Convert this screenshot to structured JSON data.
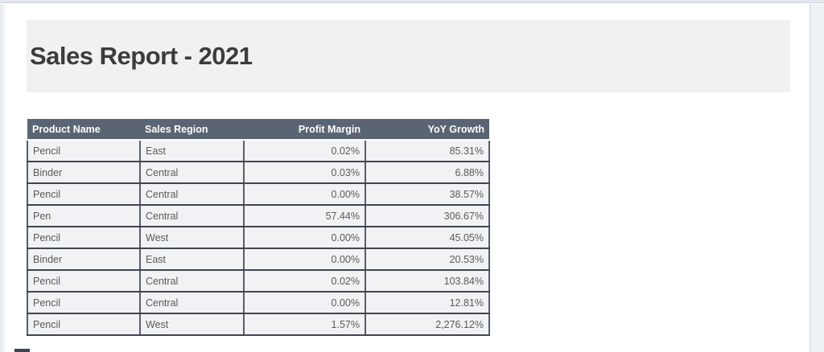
{
  "page": {
    "title": "Sales Report - 2021"
  },
  "table": {
    "columns": [
      {
        "label": "Product Name",
        "align": "left"
      },
      {
        "label": "Sales Region",
        "align": "left"
      },
      {
        "label": "Profit Margin",
        "align": "right"
      },
      {
        "label": "YoY Growth",
        "align": "right"
      }
    ],
    "rows": [
      [
        "Pencil",
        "East",
        "0.02%",
        "85.31%"
      ],
      [
        "Binder",
        "Central",
        "0.03%",
        "6.88%"
      ],
      [
        "Pencil",
        "Central",
        "0.00%",
        "38.57%"
      ],
      [
        "Pen",
        "Central",
        "57.44%",
        "306.67%"
      ],
      [
        "Pencil",
        "West",
        "0.00%",
        "45.05%"
      ],
      [
        "Binder",
        "East",
        "0.00%",
        "20.53%"
      ],
      [
        "Pencil",
        "Central",
        "0.02%",
        "103.84%"
      ],
      [
        "Pencil",
        "Central",
        "0.00%",
        "12.81%"
      ],
      [
        "Pencil",
        "West",
        "1.57%",
        "2,276.12%"
      ]
    ]
  },
  "colors": {
    "header_bg": "#5b6472",
    "header_text": "#ffffff",
    "row_bg": "#f1f2f3",
    "border_dark": "#3f4551",
    "border_mid": "#565d6b",
    "title_band_bg": "#f0f1f2",
    "title_text": "#3c3c3c",
    "body_text": "#5a5a5a",
    "top_strip_bg": "#e5e9ef",
    "gutter_bg": "#eef1f5",
    "chrome_line": "#cdd3db"
  }
}
